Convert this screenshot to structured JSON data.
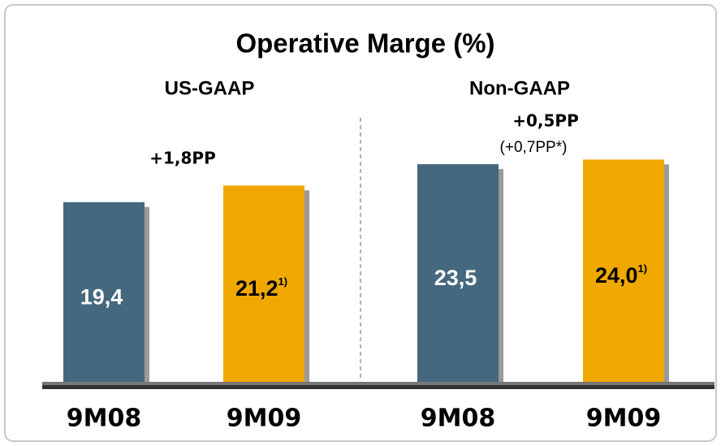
{
  "title": "Operative Marge (%)",
  "chart_data": [
    {
      "type": "bar",
      "title": "US-GAAP",
      "categories": [
        "9M08",
        "9M09"
      ],
      "values": [
        19.4,
        21.2
      ],
      "value_labels": [
        "19,4",
        "21,2"
      ],
      "value_notes": [
        null,
        "1)"
      ],
      "colors": [
        "#45687e",
        "#f0a800"
      ],
      "label_colors": [
        "#ffffff",
        "#000000"
      ],
      "annotations": [
        "+1,8PP"
      ]
    },
    {
      "type": "bar",
      "title": "Non-GAAP",
      "categories": [
        "9M08",
        "9M09"
      ],
      "values": [
        23.5,
        24.0
      ],
      "value_labels": [
        "23,5",
        "24,0"
      ],
      "value_notes": [
        null,
        "1)"
      ],
      "colors": [
        "#45687e",
        "#f0a800"
      ],
      "label_colors": [
        "#ffffff",
        "#000000"
      ],
      "annotations": [
        "+0,5PP",
        "(+0,7PP*)"
      ]
    }
  ]
}
